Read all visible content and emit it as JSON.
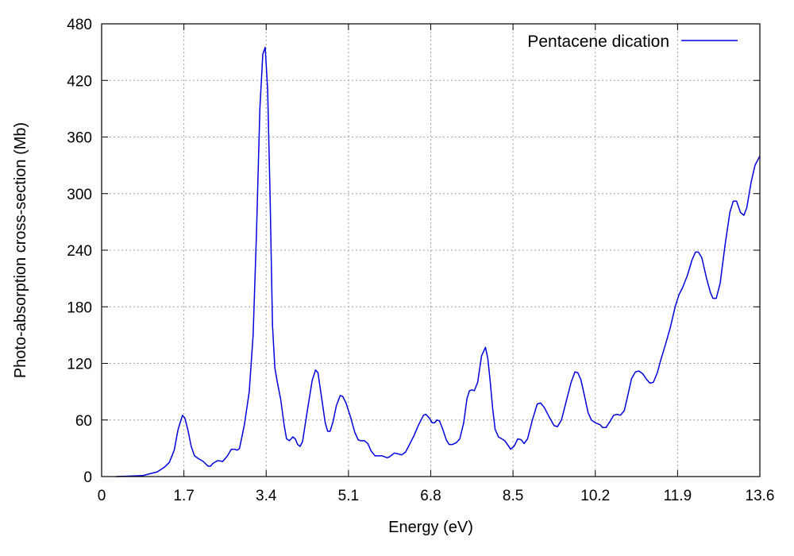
{
  "chart_data": {
    "type": "line",
    "title": "",
    "xlabel": "Energy (eV)",
    "ylabel": "Photo-absorption cross-section (Mb)",
    "xlim": [
      0,
      13.6
    ],
    "ylim": [
      0,
      480
    ],
    "xticks": [
      "0",
      "1.7",
      "3.4",
      "5.1",
      "6.8",
      "8.5",
      "10.2",
      "11.9",
      "13.6"
    ],
    "yticks": [
      "0",
      "60",
      "120",
      "180",
      "240",
      "300",
      "360",
      "420",
      "480"
    ],
    "grid": true,
    "legend_position": "top-right",
    "series": [
      {
        "name": "Pentacene dication",
        "color": "#0000e0",
        "points": [
          [
            0.3,
            0
          ],
          [
            0.6,
            0.5
          ],
          [
            0.85,
            1
          ],
          [
            1.0,
            3
          ],
          [
            1.15,
            5
          ],
          [
            1.3,
            10
          ],
          [
            1.4,
            15
          ],
          [
            1.5,
            28
          ],
          [
            1.58,
            50
          ],
          [
            1.67,
            65
          ],
          [
            1.72,
            62
          ],
          [
            1.78,
            50
          ],
          [
            1.85,
            32
          ],
          [
            1.92,
            22
          ],
          [
            2.0,
            19
          ],
          [
            2.1,
            16
          ],
          [
            2.2,
            11
          ],
          [
            2.25,
            11
          ],
          [
            2.3,
            14
          ],
          [
            2.4,
            17
          ],
          [
            2.5,
            16
          ],
          [
            2.6,
            22
          ],
          [
            2.68,
            29
          ],
          [
            2.75,
            29
          ],
          [
            2.8,
            28
          ],
          [
            2.85,
            30
          ],
          [
            2.95,
            55
          ],
          [
            3.05,
            90
          ],
          [
            3.13,
            150
          ],
          [
            3.2,
            260
          ],
          [
            3.27,
            390
          ],
          [
            3.33,
            448
          ],
          [
            3.38,
            455
          ],
          [
            3.43,
            410
          ],
          [
            3.48,
            300
          ],
          [
            3.53,
            160
          ],
          [
            3.58,
            115
          ],
          [
            3.63,
            100
          ],
          [
            3.7,
            82
          ],
          [
            3.77,
            55
          ],
          [
            3.82,
            40
          ],
          [
            3.88,
            38
          ],
          [
            3.95,
            42
          ],
          [
            4.0,
            40
          ],
          [
            4.05,
            34
          ],
          [
            4.1,
            32
          ],
          [
            4.15,
            37
          ],
          [
            4.25,
            70
          ],
          [
            4.35,
            102
          ],
          [
            4.42,
            113
          ],
          [
            4.47,
            110
          ],
          [
            4.55,
            82
          ],
          [
            4.62,
            57
          ],
          [
            4.67,
            48
          ],
          [
            4.72,
            48
          ],
          [
            4.78,
            58
          ],
          [
            4.85,
            75
          ],
          [
            4.93,
            86
          ],
          [
            4.98,
            85
          ],
          [
            5.05,
            78
          ],
          [
            5.15,
            62
          ],
          [
            5.23,
            47
          ],
          [
            5.3,
            39
          ],
          [
            5.35,
            38
          ],
          [
            5.43,
            38
          ],
          [
            5.5,
            35
          ],
          [
            5.57,
            27
          ],
          [
            5.65,
            22
          ],
          [
            5.72,
            22
          ],
          [
            5.8,
            22
          ],
          [
            5.9,
            20
          ],
          [
            5.95,
            21
          ],
          [
            6.0,
            23
          ],
          [
            6.05,
            25
          ],
          [
            6.13,
            24
          ],
          [
            6.2,
            23
          ],
          [
            6.28,
            26
          ],
          [
            6.35,
            33
          ],
          [
            6.45,
            43
          ],
          [
            6.55,
            55
          ],
          [
            6.65,
            65
          ],
          [
            6.7,
            66
          ],
          [
            6.77,
            62
          ],
          [
            6.83,
            57
          ],
          [
            6.88,
            57
          ],
          [
            6.93,
            60
          ],
          [
            6.98,
            59
          ],
          [
            7.05,
            50
          ],
          [
            7.12,
            39
          ],
          [
            7.18,
            34
          ],
          [
            7.25,
            34
          ],
          [
            7.33,
            36
          ],
          [
            7.4,
            40
          ],
          [
            7.48,
            57
          ],
          [
            7.55,
            83
          ],
          [
            7.6,
            91
          ],
          [
            7.65,
            92
          ],
          [
            7.7,
            91
          ],
          [
            7.77,
            100
          ],
          [
            7.85,
            128
          ],
          [
            7.93,
            137
          ],
          [
            7.98,
            125
          ],
          [
            8.03,
            100
          ],
          [
            8.08,
            72
          ],
          [
            8.13,
            50
          ],
          [
            8.2,
            42
          ],
          [
            8.27,
            40
          ],
          [
            8.33,
            38
          ],
          [
            8.4,
            33
          ],
          [
            8.45,
            29
          ],
          [
            8.52,
            32
          ],
          [
            8.6,
            40
          ],
          [
            8.67,
            39
          ],
          [
            8.73,
            35
          ],
          [
            8.8,
            40
          ],
          [
            8.9,
            60
          ],
          [
            9.0,
            77
          ],
          [
            9.07,
            78
          ],
          [
            9.15,
            73
          ],
          [
            9.25,
            63
          ],
          [
            9.35,
            54
          ],
          [
            9.42,
            53
          ],
          [
            9.5,
            60
          ],
          [
            9.6,
            80
          ],
          [
            9.7,
            100
          ],
          [
            9.78,
            111
          ],
          [
            9.84,
            110
          ],
          [
            9.9,
            103
          ],
          [
            9.98,
            85
          ],
          [
            10.05,
            68
          ],
          [
            10.12,
            60
          ],
          [
            10.2,
            57
          ],
          [
            10.3,
            55
          ],
          [
            10.35,
            52
          ],
          [
            10.42,
            52
          ],
          [
            10.5,
            58
          ],
          [
            10.58,
            65
          ],
          [
            10.65,
            66
          ],
          [
            10.72,
            65
          ],
          [
            10.8,
            70
          ],
          [
            10.88,
            88
          ],
          [
            10.95,
            104
          ],
          [
            11.03,
            111
          ],
          [
            11.1,
            112
          ],
          [
            11.18,
            109
          ],
          [
            11.26,
            103
          ],
          [
            11.33,
            99
          ],
          [
            11.4,
            100
          ],
          [
            11.48,
            110
          ],
          [
            11.55,
            123
          ],
          [
            11.65,
            140
          ],
          [
            11.75,
            158
          ],
          [
            11.85,
            180
          ],
          [
            11.93,
            193
          ],
          [
            12.0,
            200
          ],
          [
            12.1,
            213
          ],
          [
            12.2,
            230
          ],
          [
            12.27,
            238
          ],
          [
            12.33,
            238
          ],
          [
            12.4,
            232
          ],
          [
            12.5,
            210
          ],
          [
            12.58,
            195
          ],
          [
            12.63,
            189
          ],
          [
            12.7,
            189
          ],
          [
            12.78,
            205
          ],
          [
            12.88,
            245
          ],
          [
            12.98,
            280
          ],
          [
            13.05,
            292
          ],
          [
            13.12,
            292
          ],
          [
            13.2,
            280
          ],
          [
            13.27,
            277
          ],
          [
            13.33,
            285
          ],
          [
            13.42,
            312
          ],
          [
            13.5,
            330
          ],
          [
            13.6,
            340
          ]
        ]
      }
    ]
  }
}
